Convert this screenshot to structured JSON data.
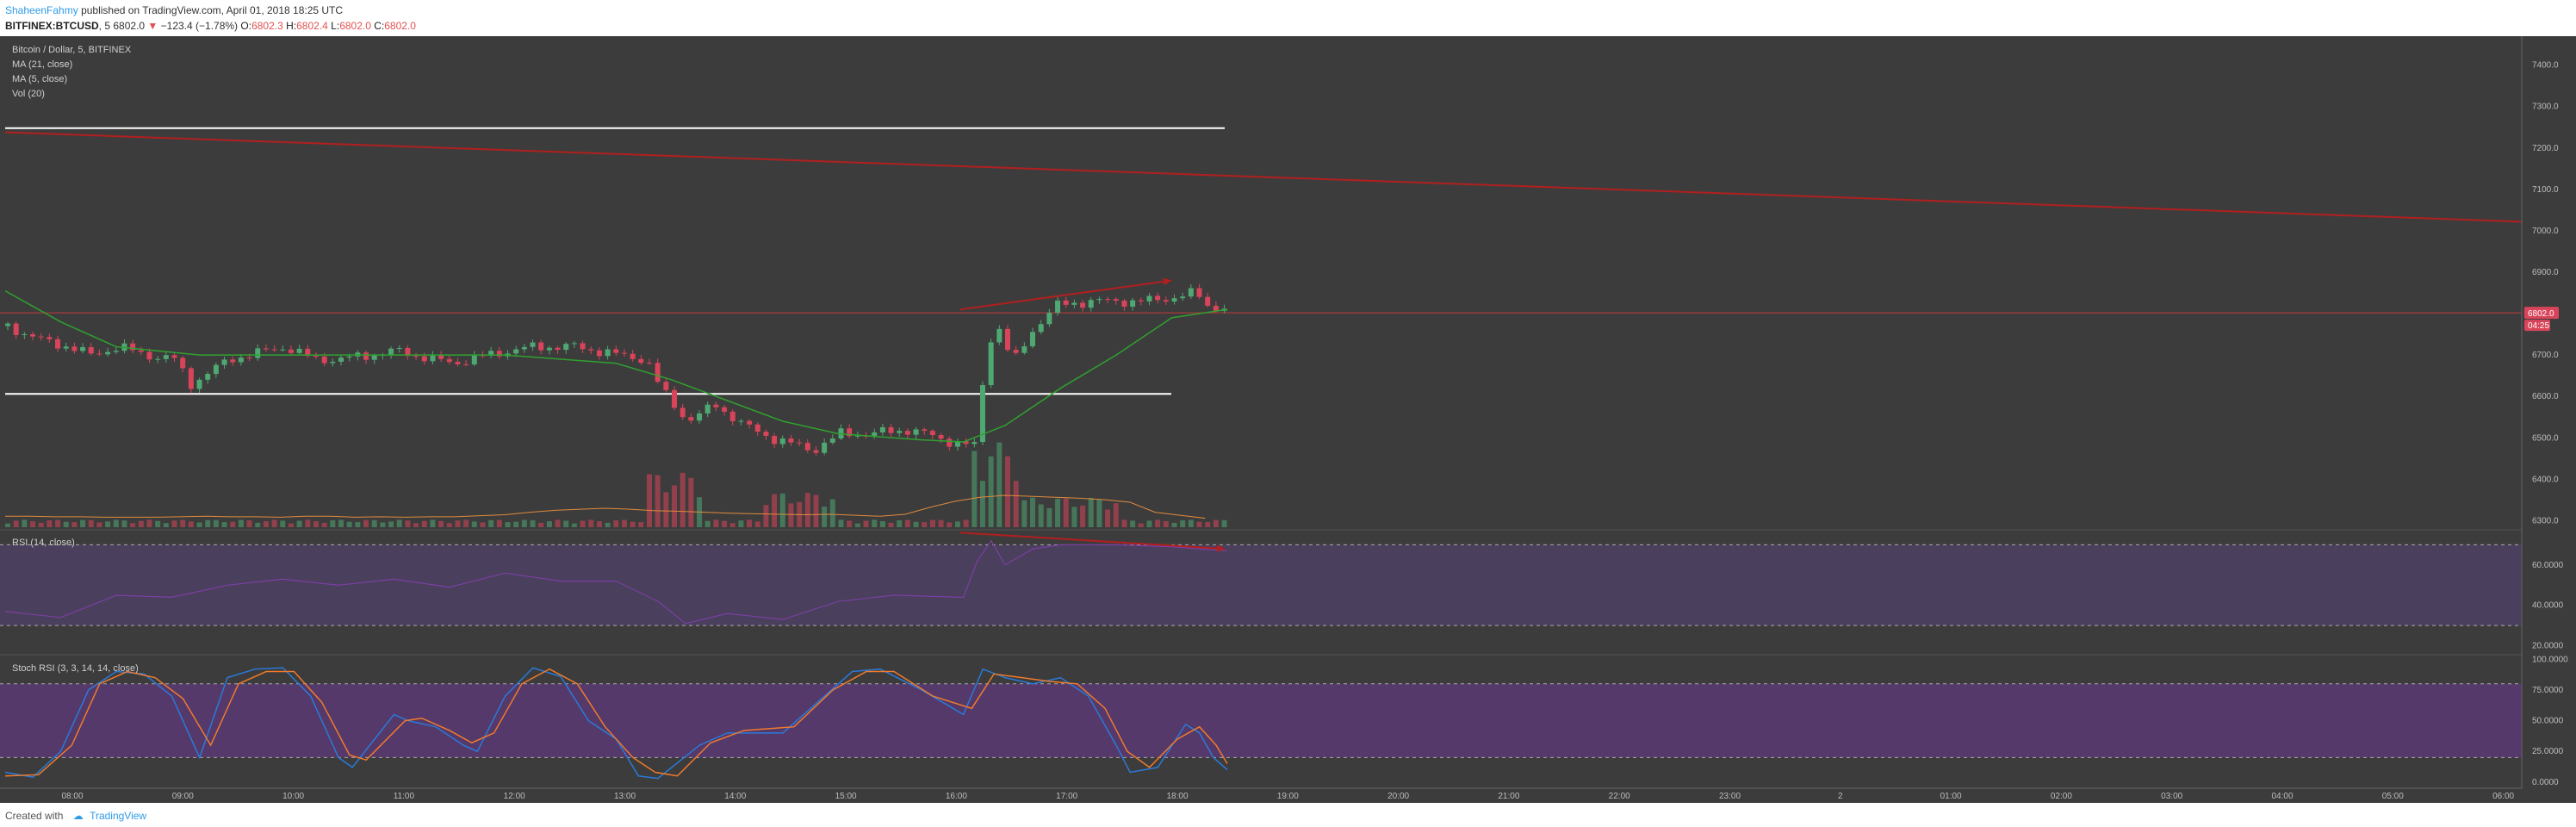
{
  "header": {
    "author": "ShaheenFahmy",
    "published_text": "published on TradingView.com, April 01, 2018 18:25 UTC",
    "symbol": "BITFINEX:BTCUSD",
    "interval": "5",
    "last": "6802.0",
    "change_arrow": "▼",
    "change": "−123.4 (−1.78%)",
    "o_label": "O:",
    "o_value": "6802.3",
    "h_label": "H:",
    "h_value": "6802.4",
    "l_label": "L:",
    "l_value": "6802.0",
    "c_label": "C:",
    "c_value": "6802.0"
  },
  "legend": {
    "main_title": "Bitcoin / Dollar, 5, BITFINEX",
    "ma21": "MA (21, close)",
    "ma5": "MA (5, close)",
    "vol": "Vol (20)",
    "rsi": "RSI (14, close)",
    "stoch": "Stoch RSI (3, 3, 14, 14, close)"
  },
  "footer": {
    "created_with": "Created with",
    "brand": "TradingView"
  },
  "colors": {
    "panel_bg": "#3c3c3c",
    "up": "#4fa872",
    "down": "#d9445a",
    "ma21": "#2fa12f",
    "ma5": "#e08a3c",
    "rsi_band": "#4a3f5c",
    "stoch_band": "#55396a",
    "stoch_k": "#2a7ad8",
    "stoch_d": "#f07a2c",
    "trend_line": "#b21f1f",
    "accent": "#2e9be6"
  },
  "chart_data": {
    "type": "candlestick",
    "price_ticks": [
      "7400.0",
      "7300.0",
      "7200.0",
      "7100.0",
      "7000.0",
      "6900.0",
      "6800.0",
      "6700.0",
      "6600.0",
      "6500.0",
      "6400.0",
      "6300.0"
    ],
    "price_ylim": [
      6280,
      7470
    ],
    "last_price_tag": "6802.0",
    "countdown_tag": "04:25",
    "rsi_ticks": [
      "60.0000",
      "40.0000",
      "20.0000"
    ],
    "rsi_ylim": [
      16,
      77
    ],
    "rsi_bands": [
      70,
      30
    ],
    "stoch_ticks": [
      "100.0000",
      "75.0000",
      "50.0000",
      "25.0000",
      "0.0000"
    ],
    "stoch_ylim": [
      -5,
      103
    ],
    "stoch_bands": [
      80,
      20
    ],
    "time_labels": [
      "08:00",
      "09:00",
      "10:00",
      "11:00",
      "12:00",
      "13:00",
      "14:00",
      "15:00",
      "16:00",
      "17:00",
      "18:00",
      "19:00",
      "20:00",
      "21:00",
      "22:00",
      "23:00",
      "2",
      "01:00",
      "02:00",
      "03:00",
      "04:00",
      "05:00",
      "06:00"
    ],
    "price_path": [
      [
        0,
        6770
      ],
      [
        10,
        6740
      ],
      [
        22,
        6720
      ],
      [
        30,
        6700
      ],
      [
        40,
        6720
      ],
      [
        50,
        6700
      ],
      [
        60,
        6690
      ],
      [
        66,
        6630
      ],
      [
        80,
        6690
      ],
      [
        100,
        6720
      ],
      [
        110,
        6690
      ],
      [
        120,
        6690
      ],
      [
        140,
        6710
      ],
      [
        160,
        6680
      ],
      [
        180,
        6710
      ],
      [
        190,
        6720
      ],
      [
        205,
        6720
      ],
      [
        220,
        6700
      ],
      [
        230,
        6690
      ],
      [
        235,
        6620
      ],
      [
        245,
        6540
      ],
      [
        255,
        6580
      ],
      [
        265,
        6530
      ],
      [
        275,
        6500
      ],
      [
        290,
        6470
      ],
      [
        300,
        6510
      ],
      [
        310,
        6510
      ],
      [
        325,
        6520
      ],
      [
        340,
        6490
      ],
      [
        348,
        6480
      ],
      [
        350,
        6560
      ],
      [
        352,
        6700
      ],
      [
        356,
        6780
      ],
      [
        362,
        6680
      ],
      [
        370,
        6770
      ],
      [
        378,
        6820
      ],
      [
        390,
        6830
      ],
      [
        410,
        6830
      ],
      [
        420,
        6840
      ],
      [
        428,
        6850
      ],
      [
        432,
        6820
      ],
      [
        440,
        6810
      ]
    ],
    "ma21_path": [
      [
        0,
        6855
      ],
      [
        20,
        6780
      ],
      [
        40,
        6720
      ],
      [
        70,
        6700
      ],
      [
        110,
        6700
      ],
      [
        180,
        6700
      ],
      [
        220,
        6680
      ],
      [
        240,
        6640
      ],
      [
        260,
        6590
      ],
      [
        280,
        6540
      ],
      [
        300,
        6510
      ],
      [
        330,
        6495
      ],
      [
        345,
        6490
      ],
      [
        360,
        6530
      ],
      [
        380,
        6620
      ],
      [
        400,
        6700
      ],
      [
        420,
        6790
      ],
      [
        440,
        6810
      ]
    ],
    "volume": {
      "ylim": [
        0,
        190
      ],
      "ma_values": [
        22,
        22,
        21,
        21,
        20,
        20,
        20,
        21,
        22,
        21,
        21,
        20,
        22,
        22,
        20,
        21,
        20,
        21,
        21,
        23,
        25,
        30,
        34,
        36,
        38,
        36,
        33,
        32,
        30,
        28,
        27,
        26,
        25,
        26,
        24,
        22,
        26,
        40,
        52,
        60,
        64,
        62,
        60,
        58,
        55,
        50,
        30,
        24,
        18
      ]
    },
    "rsi_path": [
      [
        0,
        37
      ],
      [
        20,
        34
      ],
      [
        40,
        45
      ],
      [
        60,
        44
      ],
      [
        80,
        50
      ],
      [
        100,
        53
      ],
      [
        120,
        50
      ],
      [
        140,
        53
      ],
      [
        160,
        49
      ],
      [
        180,
        56
      ],
      [
        200,
        52
      ],
      [
        220,
        52
      ],
      [
        235,
        42
      ],
      [
        245,
        31
      ],
      [
        260,
        36
      ],
      [
        280,
        33
      ],
      [
        300,
        42
      ],
      [
        320,
        45
      ],
      [
        345,
        44
      ],
      [
        350,
        62
      ],
      [
        355,
        72
      ],
      [
        360,
        60
      ],
      [
        370,
        68
      ],
      [
        380,
        70
      ],
      [
        400,
        70
      ],
      [
        420,
        69
      ],
      [
        440,
        67
      ]
    ],
    "stoch_k_path": [
      [
        0,
        8
      ],
      [
        10,
        4
      ],
      [
        20,
        25
      ],
      [
        30,
        75
      ],
      [
        40,
        90
      ],
      [
        50,
        88
      ],
      [
        60,
        70
      ],
      [
        70,
        20
      ],
      [
        80,
        85
      ],
      [
        90,
        92
      ],
      [
        100,
        93
      ],
      [
        110,
        70
      ],
      [
        120,
        20
      ],
      [
        125,
        12
      ],
      [
        140,
        55
      ],
      [
        145,
        50
      ],
      [
        155,
        45
      ],
      [
        165,
        30
      ],
      [
        170,
        25
      ],
      [
        180,
        70
      ],
      [
        190,
        93
      ],
      [
        200,
        86
      ],
      [
        210,
        50
      ],
      [
        220,
        35
      ],
      [
        228,
        5
      ],
      [
        235,
        3
      ],
      [
        250,
        30
      ],
      [
        260,
        40
      ],
      [
        280,
        40
      ],
      [
        295,
        70
      ],
      [
        305,
        90
      ],
      [
        315,
        92
      ],
      [
        330,
        75
      ],
      [
        345,
        55
      ],
      [
        352,
        92
      ],
      [
        360,
        85
      ],
      [
        370,
        80
      ],
      [
        380,
        85
      ],
      [
        390,
        70
      ],
      [
        400,
        30
      ],
      [
        405,
        8
      ],
      [
        415,
        12
      ],
      [
        425,
        47
      ],
      [
        430,
        40
      ],
      [
        435,
        20
      ],
      [
        440,
        10
      ]
    ],
    "stoch_d_path": [
      [
        0,
        5
      ],
      [
        12,
        6
      ],
      [
        24,
        30
      ],
      [
        34,
        80
      ],
      [
        44,
        90
      ],
      [
        54,
        85
      ],
      [
        64,
        68
      ],
      [
        74,
        30
      ],
      [
        84,
        80
      ],
      [
        94,
        90
      ],
      [
        104,
        90
      ],
      [
        114,
        65
      ],
      [
        124,
        22
      ],
      [
        130,
        18
      ],
      [
        144,
        50
      ],
      [
        150,
        52
      ],
      [
        160,
        42
      ],
      [
        168,
        32
      ],
      [
        176,
        40
      ],
      [
        186,
        80
      ],
      [
        196,
        92
      ],
      [
        206,
        80
      ],
      [
        216,
        45
      ],
      [
        226,
        20
      ],
      [
        234,
        8
      ],
      [
        242,
        5
      ],
      [
        254,
        32
      ],
      [
        266,
        42
      ],
      [
        284,
        45
      ],
      [
        298,
        75
      ],
      [
        310,
        90
      ],
      [
        320,
        90
      ],
      [
        334,
        70
      ],
      [
        348,
        60
      ],
      [
        356,
        88
      ],
      [
        366,
        85
      ],
      [
        376,
        82
      ],
      [
        386,
        80
      ],
      [
        396,
        60
      ],
      [
        404,
        25
      ],
      [
        412,
        12
      ],
      [
        422,
        35
      ],
      [
        430,
        45
      ],
      [
        436,
        30
      ],
      [
        440,
        15
      ]
    ]
  }
}
